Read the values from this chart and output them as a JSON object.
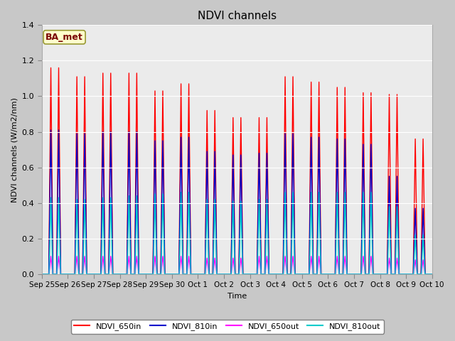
{
  "title": "NDVI channels",
  "ylabel": "NDVI channels (W/m2/nm)",
  "xlabel": "Time",
  "annotation": "BA_met",
  "ylim": [
    0.0,
    1.4
  ],
  "plot_bg_color": "#ebebeb",
  "fig_bg_color": "#c8c8c8",
  "tick_labels": [
    "Sep 25",
    "Sep 26",
    "Sep 27",
    "Sep 28",
    "Sep 29",
    "Sep 30",
    "Oct 1",
    "Oct 2",
    "Oct 3",
    "Oct 4",
    "Oct 5",
    "Oct 6",
    "Oct 7",
    "Oct 8",
    "Oct 9",
    "Oct 10"
  ],
  "peaks_650in": [
    1.16,
    1.11,
    1.13,
    1.13,
    1.03,
    1.07,
    0.92,
    0.88,
    0.88,
    1.11,
    1.08,
    1.05,
    1.02,
    1.01,
    0.76
  ],
  "peaks_810in": [
    0.81,
    0.79,
    0.8,
    0.8,
    0.75,
    0.77,
    0.69,
    0.67,
    0.68,
    0.79,
    0.77,
    0.76,
    0.73,
    0.55,
    0.37
  ],
  "peaks_650out": [
    0.1,
    0.1,
    0.1,
    0.1,
    0.1,
    0.1,
    0.09,
    0.09,
    0.1,
    0.1,
    0.1,
    0.1,
    0.1,
    0.09,
    0.08
  ],
  "peaks_810out": [
    0.43,
    0.42,
    0.43,
    0.44,
    0.45,
    0.46,
    0.42,
    0.41,
    0.42,
    0.46,
    0.46,
    0.46,
    0.46,
    0.38,
    0.22
  ],
  "color_650in": "#ff0000",
  "color_810in": "#0000cc",
  "color_650out": "#ff00ff",
  "color_810out": "#00cccc",
  "line_width": 1.0,
  "legend_labels": [
    "NDVI_650in",
    "NDVI_810in",
    "NDVI_650out",
    "NDVI_810out"
  ]
}
